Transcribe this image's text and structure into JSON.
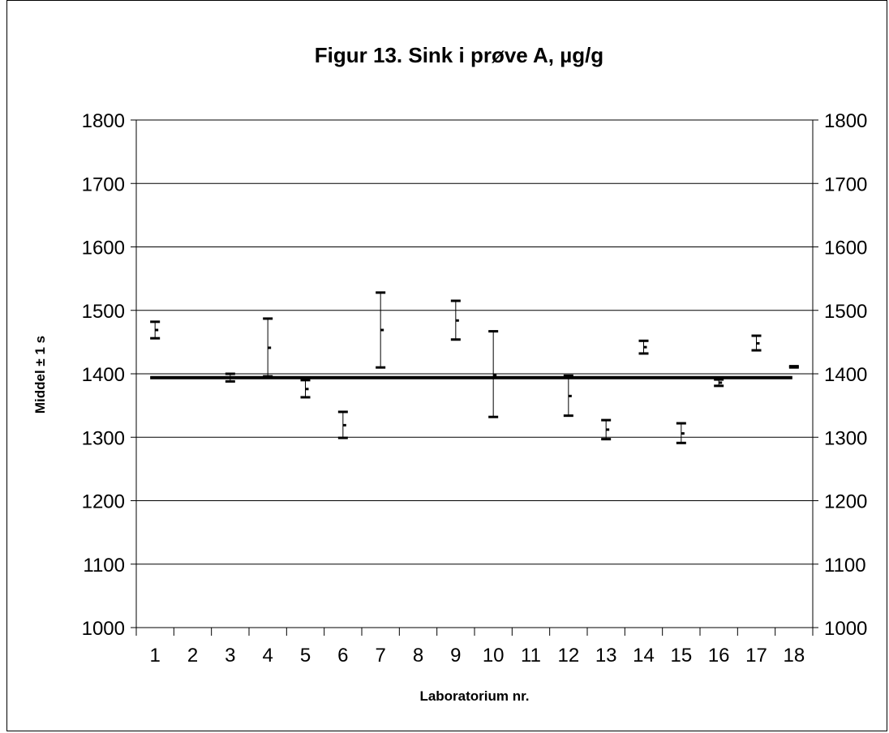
{
  "chart_data": {
    "type": "errorbar",
    "title": "Figur 13. Sink i prøve A, µg/g",
    "xlabel": "Laboratorium nr.",
    "ylabel": "Middel ± 1 s",
    "categories": [
      "1",
      "2",
      "3",
      "4",
      "5",
      "6",
      "7",
      "8",
      "9",
      "10",
      "11",
      "12",
      "13",
      "14",
      "15",
      "16",
      "17",
      "18"
    ],
    "ylim": [
      1000,
      1800
    ],
    "yticks": [
      1000,
      1100,
      1200,
      1300,
      1400,
      1500,
      1600,
      1700,
      1800
    ],
    "grid": true,
    "secondary_y_axis": true,
    "reference_line": 1394,
    "series": [
      {
        "points": [
          {
            "lab": "1",
            "mean": 1469,
            "low": 1456,
            "high": 1482
          },
          {
            "lab": "3",
            "mean": 1394,
            "low": 1388,
            "high": 1400
          },
          {
            "lab": "4",
            "mean": 1441,
            "low": 1396,
            "high": 1487
          },
          {
            "lab": "5",
            "mean": 1376,
            "low": 1363,
            "high": 1390
          },
          {
            "lab": "6",
            "mean": 1319,
            "low": 1299,
            "high": 1340
          },
          {
            "lab": "7",
            "mean": 1469,
            "low": 1410,
            "high": 1528
          },
          {
            "lab": "9",
            "mean": 1484,
            "low": 1454,
            "high": 1515
          },
          {
            "lab": "10",
            "mean": 1398,
            "low": 1332,
            "high": 1467
          },
          {
            "lab": "12",
            "mean": 1365,
            "low": 1334,
            "high": 1397
          },
          {
            "lab": "13",
            "mean": 1312,
            "low": 1297,
            "high": 1327
          },
          {
            "lab": "14",
            "mean": 1442,
            "low": 1432,
            "high": 1452
          },
          {
            "lab": "15",
            "mean": 1306,
            "low": 1291,
            "high": 1322
          },
          {
            "lab": "16",
            "mean": 1386,
            "low": 1381,
            "high": 1391
          },
          {
            "lab": "17",
            "mean": 1448,
            "low": 1437,
            "high": 1460
          },
          {
            "lab": "18",
            "mean": 1411,
            "low": 1410,
            "high": 1412
          }
        ]
      }
    ]
  }
}
